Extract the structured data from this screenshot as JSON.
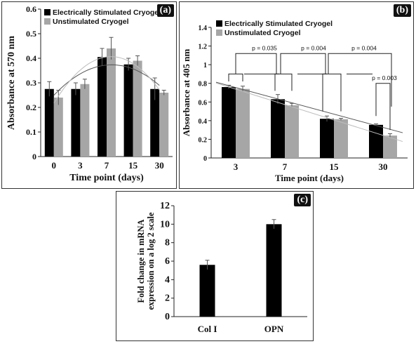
{
  "colors": {
    "series1": "#000000",
    "series2": "#a6a6a6",
    "error": "#555555",
    "trend1": "#555555",
    "trend2": "#bdbdbd"
  },
  "chart_data": [
    {
      "type": "bar",
      "panel_label": "(a)",
      "categories": [
        "0",
        "3",
        "7",
        "15",
        "30"
      ],
      "series": [
        {
          "name": "Electrically Stimulated Cryogel",
          "values": [
            0.275,
            0.275,
            0.405,
            0.375,
            0.275
          ],
          "errors": [
            0.03,
            0.025,
            0.035,
            0.025,
            0.045
          ]
        },
        {
          "name": "Unstimulated Cryogel",
          "values": [
            0.24,
            0.295,
            0.44,
            0.39,
            0.26
          ],
          "errors": [
            0.03,
            0.02,
            0.045,
            0.02,
            0.01
          ]
        }
      ],
      "trendlines": "polynomial, one per series",
      "xlabel": "Time point (days)",
      "ylabel": "Absorbance at 570 nm",
      "ylim": [
        0,
        0.6
      ],
      "yticks": [
        "0",
        "0.1",
        "0.2",
        "0.3",
        "0.4",
        "0.5",
        "0.6"
      ],
      "legend": "top-left"
    },
    {
      "type": "bar",
      "panel_label": "(b)",
      "categories": [
        "3",
        "7",
        "15",
        "30"
      ],
      "series": [
        {
          "name": "Electrically Stimulated Cryogel",
          "values": [
            0.76,
            0.63,
            0.42,
            0.355
          ],
          "errors": [
            0.02,
            0.05,
            0.03,
            0.01
          ]
        },
        {
          "name": "Unstimulated Cryogel",
          "values": [
            0.74,
            0.565,
            0.415,
            0.24
          ],
          "errors": [
            0.03,
            0.02,
            0.01,
            0.02
          ]
        }
      ],
      "trendlines": "linear, one per series",
      "annotations": [
        "p = 0.035",
        "p = 0.004",
        "p = 0.004",
        "p = 0.003"
      ],
      "xlabel": "Time point (days)",
      "ylabel": "Absorbance at 405 nm",
      "ylim": [
        0,
        1.4
      ],
      "yticks": [
        "0",
        "0.2",
        "0.4",
        "0.6",
        "0.8",
        "1",
        "1.2",
        "1.4"
      ],
      "legend": "top-left"
    },
    {
      "type": "bar",
      "panel_label": "(c)",
      "categories": [
        "Col I",
        "OPN"
      ],
      "values": [
        5.6,
        10.0
      ],
      "errors": [
        0.5,
        0.5
      ],
      "xlabel": "",
      "ylabel": "Fold change in mRNA expression on a log 2 scale",
      "ylim": [
        0,
        12
      ],
      "yticks": [
        "0",
        "2",
        "4",
        "6",
        "8",
        "10",
        "12"
      ]
    }
  ]
}
